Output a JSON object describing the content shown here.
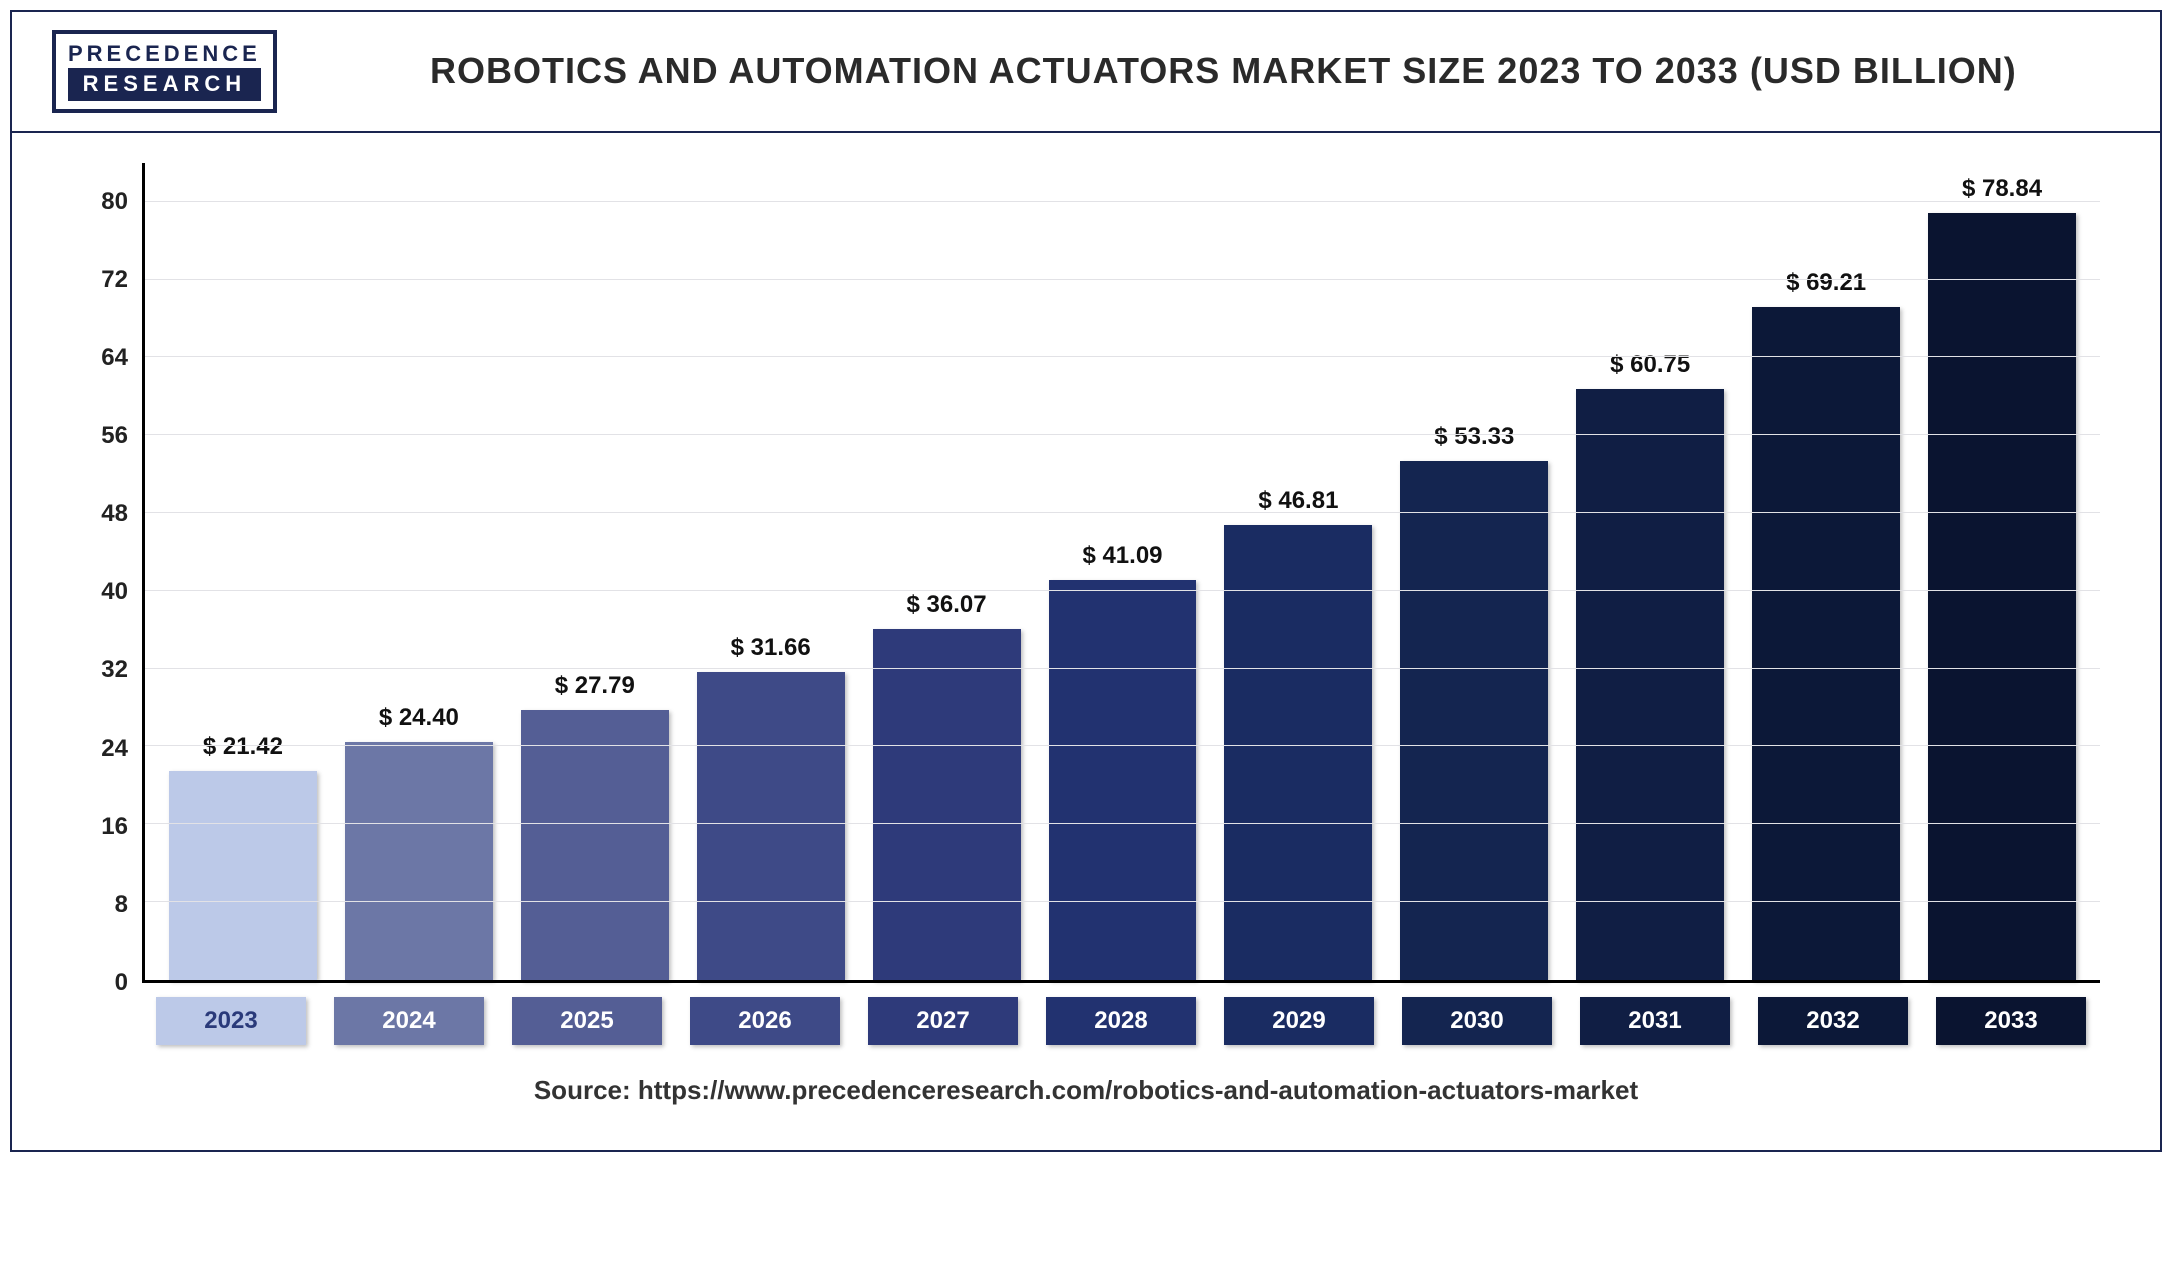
{
  "logo": {
    "line1": "PRECEDENCE",
    "line2": "RESEARCH"
  },
  "title": "ROBOTICS AND AUTOMATION ACTUATORS MARKET SIZE 2023 TO 2033 (USD BILLION)",
  "source_label": "Source: https://www.precedenceresearch.com/robotics-and-automation-actuators-market",
  "chart": {
    "type": "bar",
    "ylim": [
      0,
      84
    ],
    "yticks": [
      0,
      8,
      16,
      24,
      32,
      40,
      48,
      56,
      64,
      72,
      80
    ],
    "grid_color": "#e2e2e6",
    "axis_color": "#000000",
    "background_color": "#ffffff",
    "value_prefix": "$ ",
    "tick_fontsize": 24,
    "tick_fontweight": 700,
    "value_label_fontsize": 24,
    "value_label_fontweight": 800,
    "categories": [
      "2023",
      "2024",
      "2025",
      "2026",
      "2027",
      "2028",
      "2029",
      "2030",
      "2031",
      "2032",
      "2033"
    ],
    "values": [
      21.42,
      24.4,
      27.79,
      31.66,
      36.07,
      41.09,
      46.81,
      53.33,
      60.75,
      69.21,
      78.84
    ],
    "bar_colors": [
      "#bcc9e8",
      "#6c77a6",
      "#545e95",
      "#3e4a87",
      "#2e3a7a",
      "#223270",
      "#1a2c62",
      "#142550",
      "#101e44",
      "#0c1838",
      "#0a1430"
    ],
    "x_label_bg_colors": [
      "#bcc9e8",
      "#6c77a6",
      "#545e95",
      "#3e4a87",
      "#2e3a7a",
      "#223270",
      "#1a2c62",
      "#142550",
      "#101e44",
      "#0c1838",
      "#0a1430"
    ],
    "x_label_text_colors": [
      "#2a3a7a",
      "#ffffff",
      "#ffffff",
      "#ffffff",
      "#ffffff",
      "#ffffff",
      "#ffffff",
      "#ffffff",
      "#ffffff",
      "#ffffff",
      "#ffffff"
    ]
  }
}
